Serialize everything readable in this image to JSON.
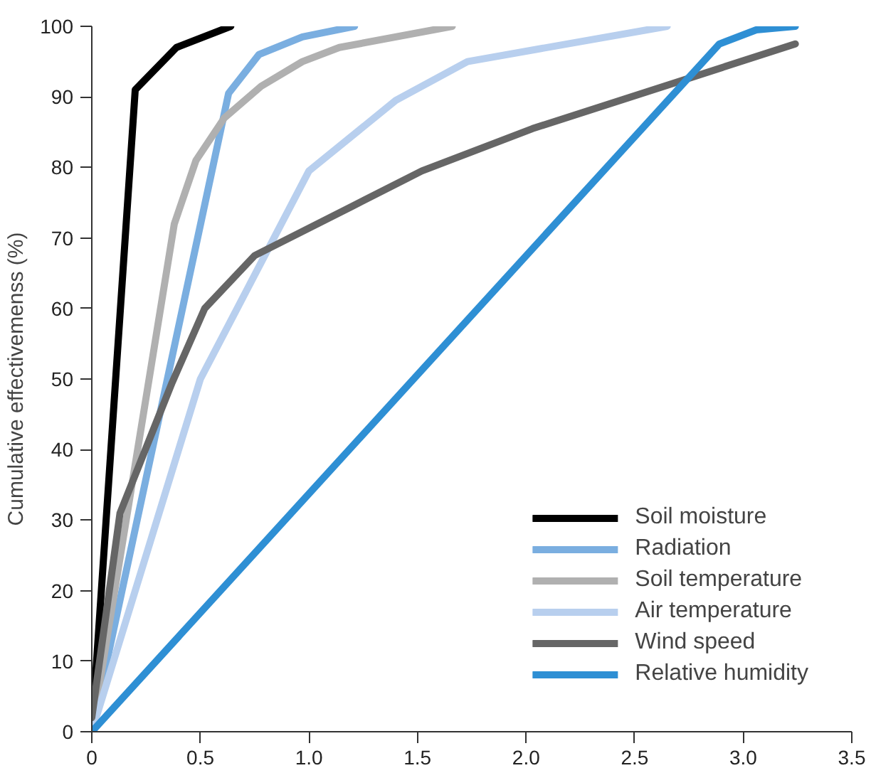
{
  "chart_data": {
    "type": "line",
    "ylabel": "Cumulative effectivemenss (%)",
    "xlim": [
      0,
      3.5
    ],
    "ylim": [
      0,
      100
    ],
    "xticks": [
      0,
      {
        "value": 0.5,
        "label": "0.5"
      },
      {
        "value": 1,
        "label": "1.0"
      },
      {
        "value": 1.5,
        "label": "1.5"
      },
      {
        "value": 2,
        "label": "2.0"
      },
      {
        "value": 2.5,
        "label": "2.5"
      },
      {
        "value": 3,
        "label": "3.0"
      },
      {
        "value": 3.5,
        "label": "3.5"
      }
    ],
    "yticks": [
      0,
      10,
      20,
      30,
      40,
      50,
      60,
      70,
      80,
      90,
      100
    ],
    "grid": false,
    "legend": "bottom right",
    "marker": "none",
    "line_style": "solid",
    "series": [
      {
        "name": "Soil moisture",
        "color": "#000000",
        "x": [
          0,
          0.2,
          0.39,
          0.64
        ],
        "values": [
          0,
          91,
          97,
          100
        ]
      },
      {
        "name": "Radiation",
        "color": "#7aaee0",
        "x": [
          0,
          0.63,
          0.77,
          0.97,
          1.21
        ],
        "values": [
          0,
          90.5,
          96,
          98.5,
          100
        ]
      },
      {
        "name": "Soil temperature",
        "color": "#b0b0b0",
        "x": [
          0,
          0.38,
          0.48,
          0.61,
          0.78,
          0.97,
          1.14,
          1.66
        ],
        "values": [
          0,
          72,
          81,
          87,
          91.5,
          95,
          97,
          100
        ]
      },
      {
        "name": "Air temperature",
        "color": "#b8cfee",
        "x": [
          0,
          0.5,
          1.0,
          1.4,
          1.73,
          2.65
        ],
        "values": [
          0,
          50,
          79.5,
          89.5,
          95,
          100
        ]
      },
      {
        "name": "Wind speed",
        "color": "#666666",
        "x": [
          0,
          0.13,
          0.37,
          0.52,
          0.75,
          1.2,
          1.52,
          2.03,
          3.24
        ],
        "values": [
          2,
          31,
          49.5,
          60,
          67.5,
          74.5,
          79.5,
          85.5,
          97.5
        ]
      },
      {
        "name": "Relative humidity",
        "color": "#2e8fd4",
        "x": [
          0,
          2.89,
          3.06,
          3.24
        ],
        "values": [
          0,
          97.5,
          99.5,
          100
        ]
      }
    ]
  }
}
